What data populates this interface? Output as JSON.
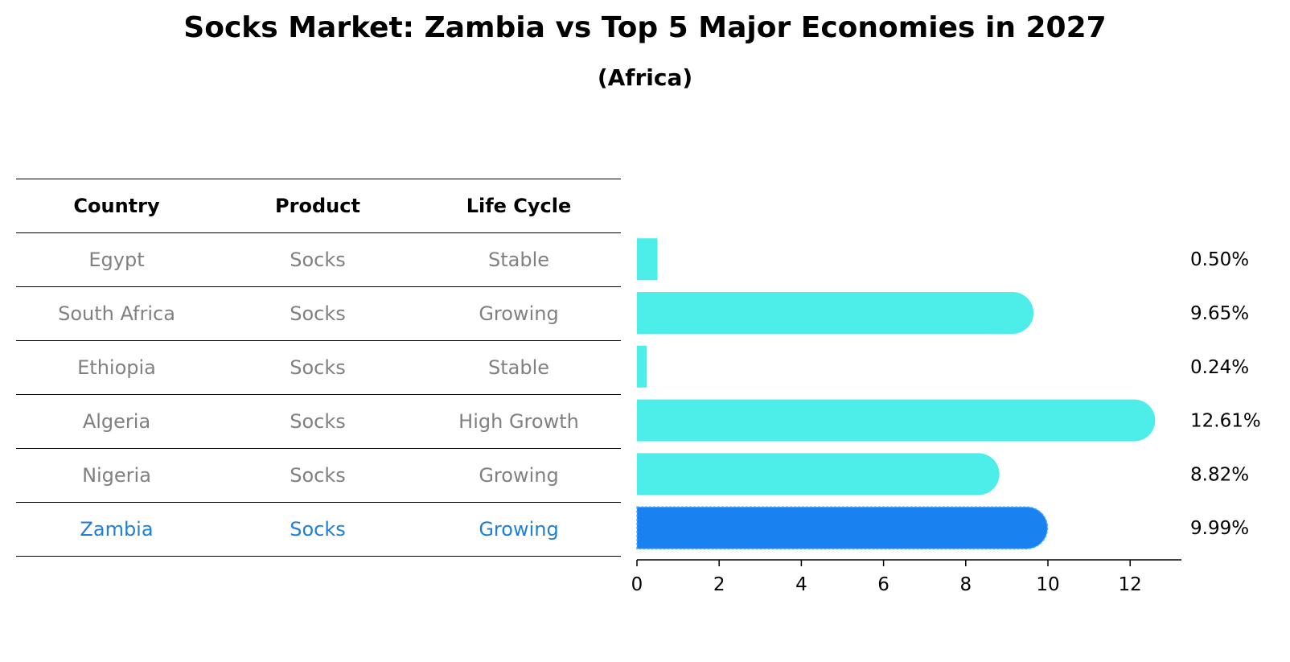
{
  "title": "Socks Market: Zambia vs Top 5 Major Economies in 2027",
  "subtitle": "(Africa)",
  "table": {
    "headers": [
      "Country",
      "Product",
      "Life Cycle"
    ],
    "rows": [
      {
        "country": "Egypt",
        "product": "Socks",
        "life_cycle": "Stable"
      },
      {
        "country": "South Africa",
        "product": "Socks",
        "life_cycle": "Growing"
      },
      {
        "country": "Ethiopia",
        "product": "Socks",
        "life_cycle": "Stable"
      },
      {
        "country": "Algeria",
        "product": "Socks",
        "life_cycle": "High Growth"
      },
      {
        "country": "Nigeria",
        "product": "Socks",
        "life_cycle": "Growing"
      },
      {
        "country": "Zambia",
        "product": "Socks",
        "life_cycle": "Growing"
      }
    ]
  },
  "colors": {
    "bar": "#4dede9",
    "highlight_bar": "#1a82f0",
    "highlight_text": "#1f7fd6",
    "muted_text": "#808080"
  },
  "chart_data": {
    "type": "bar",
    "orientation": "horizontal",
    "categories": [
      "Egypt",
      "South Africa",
      "Ethiopia",
      "Algeria",
      "Nigeria",
      "Zambia"
    ],
    "values": [
      0.5,
      9.65,
      0.24,
      12.61,
      8.82,
      9.99
    ],
    "value_labels": [
      "0.50%",
      "9.65%",
      "0.24%",
      "12.61%",
      "8.82%",
      "9.99%"
    ],
    "highlight": "Zambia",
    "xlim": [
      0,
      13.2
    ],
    "xticks": [
      0,
      2,
      4,
      6,
      8,
      10,
      12
    ],
    "xtick_labels": [
      "0",
      "2",
      "4",
      "6",
      "8",
      "10",
      "12"
    ],
    "grid": false,
    "xlabel": "",
    "ylabel": ""
  }
}
